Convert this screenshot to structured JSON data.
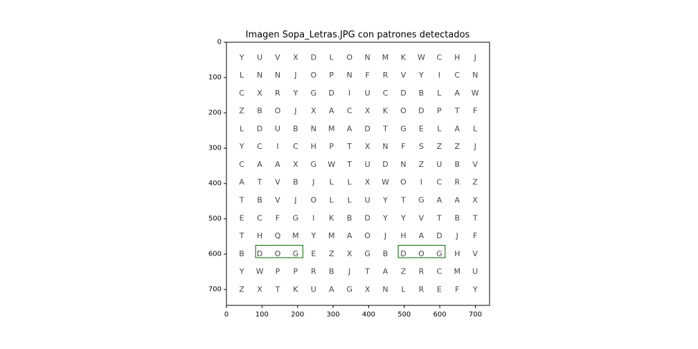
{
  "chart_data": {
    "type": "image",
    "title": "Imagen Sopa_Letras.JPG con patrones detectados",
    "xlim": [
      0,
      740
    ],
    "ylim": [
      745,
      0
    ],
    "x_ticks": [
      0,
      100,
      200,
      300,
      400,
      500,
      600,
      700
    ],
    "y_ticks": [
      0,
      100,
      200,
      300,
      400,
      500,
      600,
      700
    ],
    "grid_origin": [
      43,
      43
    ],
    "cell_size": 50.5,
    "grid": [
      [
        "Y",
        "U",
        "V",
        "X",
        "D",
        "L",
        "O",
        "N",
        "M",
        "K",
        "W",
        "C",
        "H",
        "J"
      ],
      [
        "L",
        "N",
        "N",
        "J",
        "O",
        "P",
        "N",
        "F",
        "R",
        "V",
        "Y",
        "I",
        "C",
        "N"
      ],
      [
        "C",
        "X",
        "R",
        "Y",
        "G",
        "D",
        "I",
        "U",
        "C",
        "D",
        "B",
        "L",
        "A",
        "W"
      ],
      [
        "Z",
        "B",
        "O",
        "J",
        "X",
        "A",
        "C",
        "X",
        "K",
        "O",
        "D",
        "P",
        "T",
        "F"
      ],
      [
        "L",
        "D",
        "U",
        "B",
        "N",
        "M",
        "A",
        "D",
        "T",
        "G",
        "E",
        "L",
        "A",
        "L"
      ],
      [
        "Y",
        "C",
        "I",
        "C",
        "H",
        "P",
        "T",
        "X",
        "N",
        "F",
        "S",
        "Z",
        "Z",
        "J"
      ],
      [
        "C",
        "A",
        "A",
        "X",
        "G",
        "W",
        "T",
        "U",
        "D",
        "N",
        "Z",
        "U",
        "B",
        "V"
      ],
      [
        "A",
        "T",
        "V",
        "B",
        "J",
        "L",
        "L",
        "X",
        "W",
        "O",
        "I",
        "C",
        "R",
        "Z"
      ],
      [
        "T",
        "B",
        "V",
        "J",
        "O",
        "L",
        "L",
        "U",
        "Y",
        "T",
        "G",
        "A",
        "A",
        "X"
      ],
      [
        "E",
        "C",
        "F",
        "G",
        "I",
        "K",
        "B",
        "D",
        "Y",
        "Y",
        "V",
        "T",
        "B",
        "T"
      ],
      [
        "T",
        "H",
        "Q",
        "M",
        "Y",
        "M",
        "A",
        "O",
        "J",
        "H",
        "A",
        "D",
        "J",
        "F"
      ],
      [
        "B",
        "D",
        "O",
        "G",
        "E",
        "Z",
        "X",
        "G",
        "B",
        "D",
        "O",
        "G",
        "H",
        "V"
      ],
      [
        "Y",
        "W",
        "P",
        "P",
        "R",
        "B",
        "J",
        "T",
        "A",
        "Z",
        "R",
        "C",
        "M",
        "U"
      ],
      [
        "Z",
        "X",
        "T",
        "K",
        "U",
        "A",
        "G",
        "X",
        "N",
        "L",
        "R",
        "E",
        "F",
        "Y"
      ]
    ],
    "detections": [
      {
        "word": "DOG",
        "x0": 82,
        "x1": 215,
        "y0": 575,
        "y1": 610
      },
      {
        "word": "DOG",
        "x0": 483,
        "x1": 615,
        "y0": 575,
        "y1": 610
      }
    ],
    "box_color": "#006400"
  }
}
